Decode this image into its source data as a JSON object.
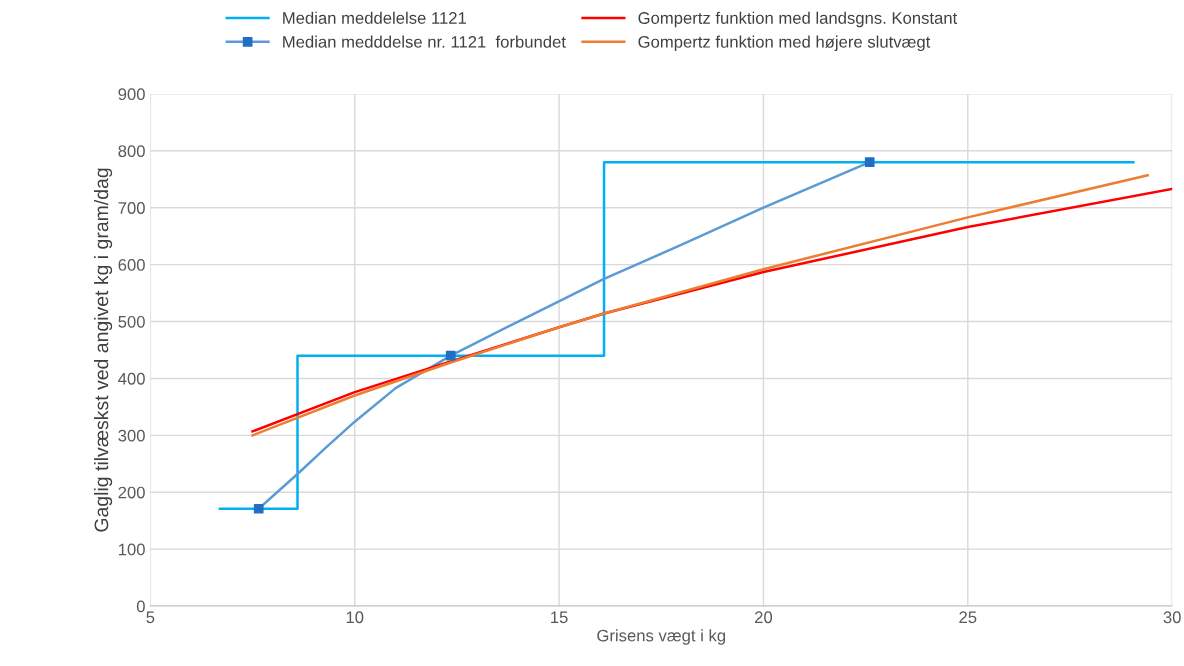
{
  "chart_data": {
    "type": "line",
    "xlabel": "Grisens vægt i kg",
    "ylabel": "Gaglig tilvæskst ved angivet kg i gram/dag",
    "xlim": [
      5,
      30
    ],
    "xticks": [
      5,
      10,
      15,
      20,
      25,
      30
    ],
    "ylim": [
      0,
      900
    ],
    "yticks": [
      0,
      100,
      200,
      300,
      400,
      500,
      600,
      700,
      800,
      900
    ],
    "grid": true,
    "legend": "top",
    "line_style": "solid",
    "series": [
      {
        "name": "Median meddelelse 1121",
        "type": "step",
        "color": "#00b0f0",
        "x": [
          6.7,
          8.6,
          16.1,
          29.05
        ],
        "values": [
          171,
          440,
          780,
          780
        ]
      },
      {
        "name": "Median medddelse nr. 1121  forbundet",
        "type": "scatter",
        "color": "#1f6fc5",
        "marker": "square",
        "x": [
          7.65,
          12.35,
          22.6
        ],
        "values": [
          171,
          440,
          780
        ]
      },
      {
        "color": "#5b9bd5",
        "x": [
          7.65,
          8.6,
          9.3,
          10,
          11,
          12.35,
          14,
          16.1,
          18,
          20,
          22.6
        ],
        "values": [
          171,
          232,
          279,
          324,
          383,
          440,
          500,
          575,
          635,
          700,
          780
        ]
      },
      {
        "name": "Gompertz funktion med landsgns. Konstant",
        "color": "#ff0000",
        "x": [
          7.5,
          10,
          12.35,
          15,
          16.1,
          20,
          25,
          30
        ],
        "values": [
          307,
          376,
          430,
          490,
          514,
          587,
          666,
          733
        ]
      },
      {
        "name": "Gompertz funktion med højere slutvægt",
        "color": "#ed7d31",
        "x": [
          7.5,
          10,
          12.35,
          15,
          16.1,
          20,
          25,
          29.4
        ],
        "values": [
          300,
          370,
          428,
          490,
          514,
          592,
          683,
          757
        ]
      }
    ]
  }
}
